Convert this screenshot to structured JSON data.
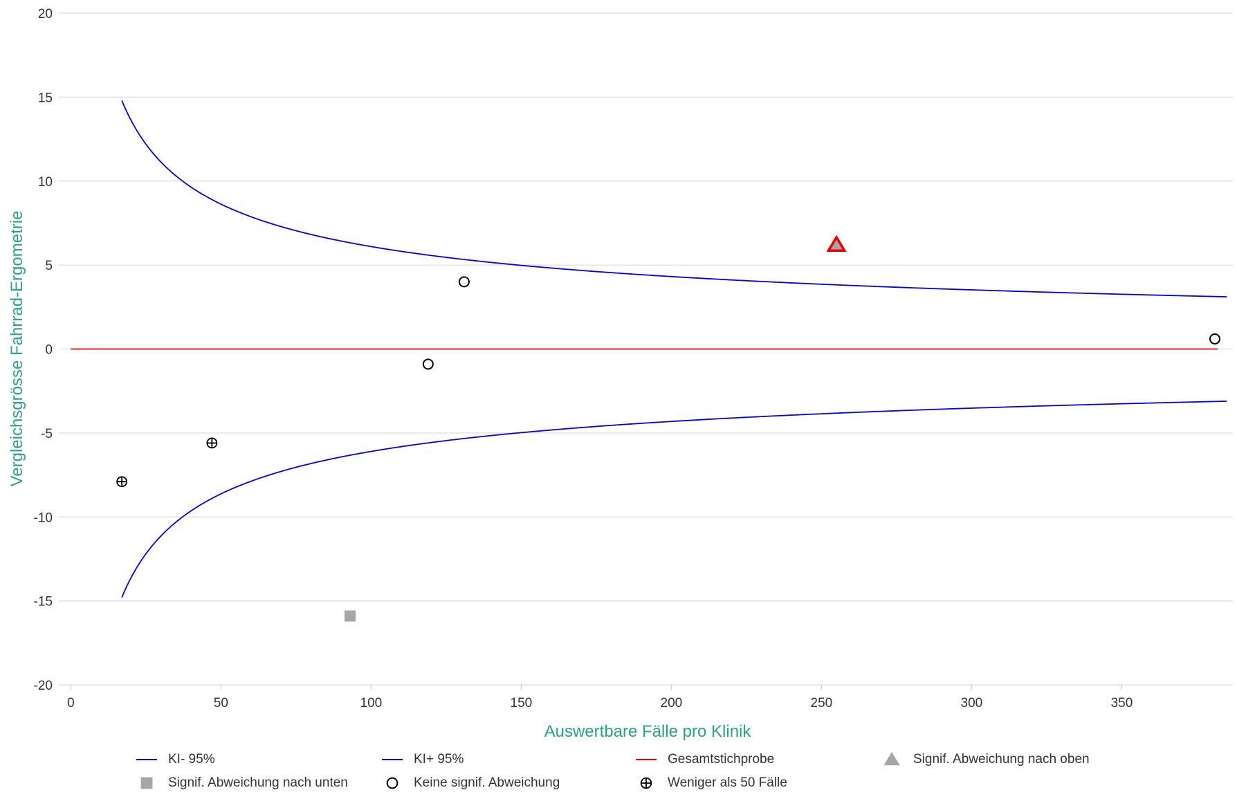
{
  "chart_data": {
    "type": "scatter",
    "xlabel": "Auswertbare Fälle pro Klinik",
    "ylabel": "Vergleichsgrösse Fahrrad-Ergometrie",
    "xlim": [
      -4,
      387
    ],
    "ylim": [
      -20,
      20
    ],
    "x_ticks": [
      "0",
      "50",
      "100",
      "150",
      "200",
      "250",
      "300",
      "350"
    ],
    "x_tick_values": [
      0,
      50,
      100,
      150,
      200,
      250,
      300,
      350
    ],
    "y_ticks": [
      "20",
      "15",
      "10",
      "5",
      "0",
      "-5",
      "-10",
      "-15",
      "-20"
    ],
    "y_tick_values": [
      20,
      15,
      10,
      5,
      0,
      -5,
      -10,
      -15,
      -20
    ],
    "grid": "horizontal",
    "legend_position": "bottom",
    "ci_curve": {
      "x_range": [
        17,
        385
      ],
      "factor": 61,
      "colors": {
        "ki_minus": "#0000ee",
        "ki_plus": "#0000ee"
      }
    },
    "reference_line": {
      "name": "Gesamtstichprobe",
      "y": 0,
      "x_range": [
        0,
        382
      ],
      "color": "#ee0000"
    },
    "points": [
      {
        "x": 17,
        "y": -7.9,
        "category": "weniger_50"
      },
      {
        "x": 47,
        "y": -5.6,
        "category": "weniger_50"
      },
      {
        "x": 93,
        "y": -15.9,
        "category": "signif_unten"
      },
      {
        "x": 119,
        "y": -0.9,
        "category": "keine"
      },
      {
        "x": 131,
        "y": 4.0,
        "category": "keine"
      },
      {
        "x": 255,
        "y": 6.2,
        "category": "signif_oben"
      },
      {
        "x": 381,
        "y": 0.6,
        "category": "keine"
      }
    ],
    "legend": [
      {
        "label": "KI- 95%",
        "symbol": "line",
        "color": "#0000ee"
      },
      {
        "label": "KI+ 95%",
        "symbol": "line",
        "color": "#0000ee"
      },
      {
        "label": "Gesamtstichprobe",
        "symbol": "line",
        "color": "#ee0000"
      },
      {
        "label": "Signif. Abweichung nach oben",
        "symbol": "triangle",
        "color": "#a6a6a6"
      },
      {
        "label": "Signif. Abweichung nach unten",
        "symbol": "square",
        "color": "#a6a6a6"
      },
      {
        "label": "Keine signif. Abweichung",
        "symbol": "circle",
        "color": "#000000"
      },
      {
        "label": "Weniger als 50 Fälle",
        "symbol": "circle-plus",
        "color": "#000000"
      }
    ],
    "colors": {
      "axis_title": "#2aa387",
      "grid": "#dddddd",
      "highlight_outline": "#ee0000"
    }
  }
}
